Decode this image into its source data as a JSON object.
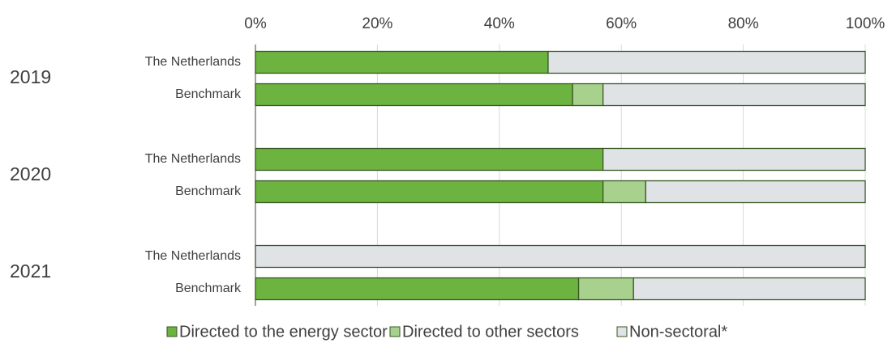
{
  "chart_data": {
    "type": "stacked_barh",
    "groups": [
      "2019",
      "2020",
      "2021"
    ],
    "categories": [
      "The Netherlands",
      "Benchmark",
      "The Netherlands",
      "Benchmark",
      "The Netherlands",
      "Benchmark"
    ],
    "series": [
      {
        "name": "Directed to the energy sector",
        "color": "#6db33f",
        "values": [
          48,
          52,
          57,
          57,
          0,
          53
        ]
      },
      {
        "name": "Directed to other sectors",
        "color": "#a9d18e",
        "values": [
          0,
          5,
          0,
          7,
          0,
          9
        ]
      },
      {
        "name": "Non-sectoral*",
        "color": "#dfe3e6",
        "values": [
          52,
          43,
          43,
          36,
          100,
          38
        ]
      }
    ],
    "xlim": [
      0,
      100
    ],
    "xticks": [
      {
        "value": 0,
        "label": "0%"
      },
      {
        "value": 20,
        "label": "20%"
      },
      {
        "value": 40,
        "label": "40%"
      },
      {
        "value": 60,
        "label": "60%"
      },
      {
        "value": 80,
        "label": "80%"
      },
      {
        "value": 100,
        "label": "100%"
      }
    ],
    "grid": true,
    "legend": "bottom"
  }
}
